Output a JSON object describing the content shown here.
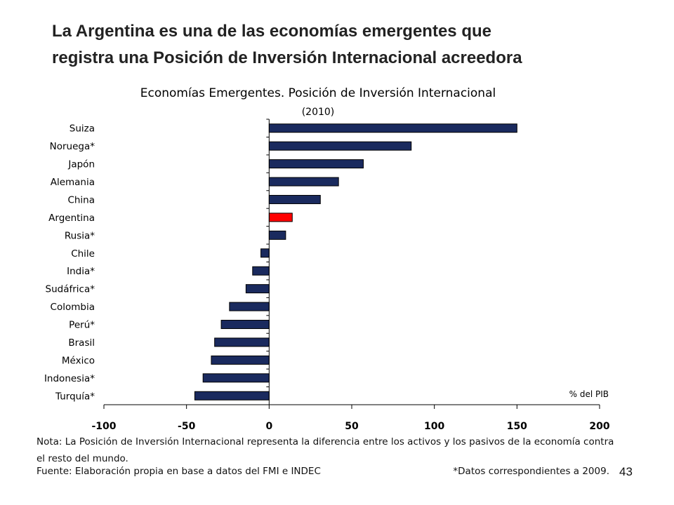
{
  "slide": {
    "title_line1": "La Argentina es una de las economías emergentes que",
    "title_line2": "registra una Posición de Inversión Internacional acreedora",
    "note_line1": "Nota: La Posición de Inversión Internacional representa la diferencia entre los activos y los pasivos de la economía contra",
    "note_line2": "el resto del mundo.",
    "source": "Fuente: Elaboración propia en base a datos del FMI e INDEC",
    "footnote": "*Datos correspondientes a 2009.",
    "page_number": "43"
  },
  "colors": {
    "bar": "#1a2a5e",
    "highlight": "#ff0000",
    "axis": "#000000"
  },
  "chart_data": {
    "type": "bar",
    "orientation": "horizontal",
    "title": "Economías Emergentes. Posición de Inversión Internacional",
    "subtitle": "(2010)",
    "unit_label": "% del PIB",
    "categories": [
      "Suiza",
      "Noruega*",
      "Japón",
      "Alemania",
      "China",
      "Argentina",
      "Rusia*",
      "Chile",
      "India*",
      "Sudáfrica*",
      "Colombia",
      "Perú*",
      "Brasil",
      "México",
      "Indonesia*",
      "Turquía*"
    ],
    "values": [
      150,
      86,
      57,
      42,
      31,
      14,
      10,
      -5,
      -10,
      -14,
      -24,
      -29,
      -33,
      -35,
      -40,
      -45
    ],
    "highlight": "Argentina",
    "xlim": [
      -100,
      200
    ],
    "xticks": [
      -100,
      -50,
      0,
      50,
      100,
      150,
      200
    ],
    "xtick_labels": [
      "-100",
      "-50",
      "0",
      "50",
      "100",
      "150",
      "200"
    ]
  }
}
